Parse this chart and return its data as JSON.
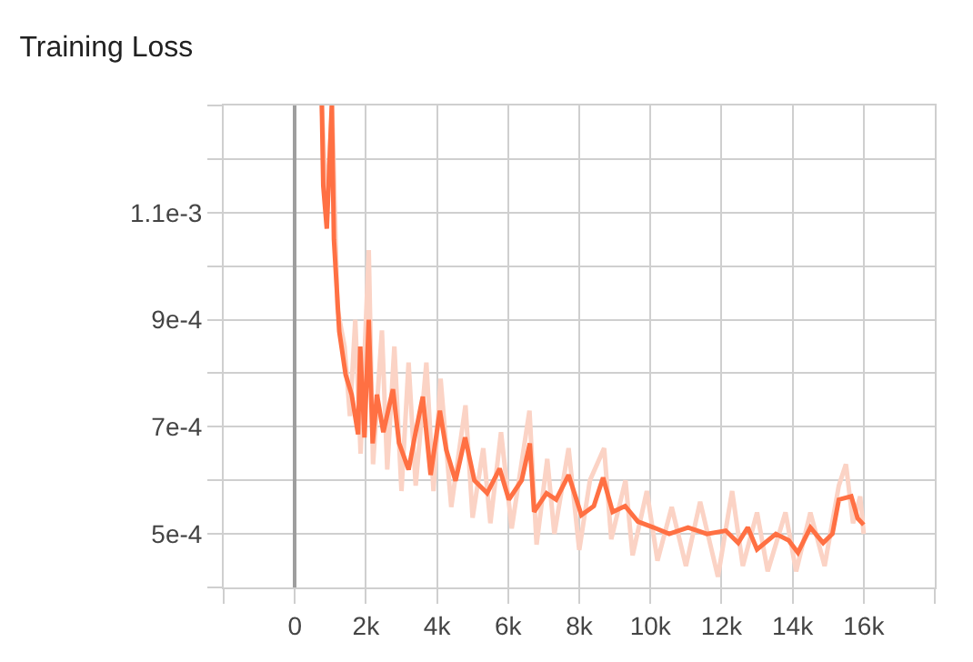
{
  "chart_data": {
    "type": "line",
    "title": "Training Loss",
    "grid": true,
    "xlim": [
      -2000,
      18000
    ],
    "xticks": [
      {
        "value": -2000,
        "label": null
      },
      0,
      {
        "value": 2000,
        "label": "2k"
      },
      {
        "value": 4000,
        "label": "4k"
      },
      {
        "value": 6000,
        "label": "6k"
      },
      {
        "value": 8000,
        "label": "8k"
      },
      {
        "value": 10000,
        "label": "10k"
      },
      {
        "value": 12000,
        "label": "12k"
      },
      {
        "value": 14000,
        "label": "14k"
      },
      {
        "value": 16000,
        "label": "16k"
      },
      {
        "value": 18000,
        "label": null
      }
    ],
    "ylim": [
      0.0004,
      0.0013
    ],
    "yticks": [
      {
        "value": 0.0004,
        "label": null
      },
      {
        "value": 0.0005,
        "label": "5e-4"
      },
      {
        "value": 0.0006,
        "label": null
      },
      {
        "value": 0.0007,
        "label": "7e-4"
      },
      {
        "value": 0.0008,
        "label": null
      },
      {
        "value": 0.0009,
        "label": "9e-4"
      },
      {
        "value": 0.001,
        "label": null
      },
      {
        "value": 0.0011,
        "label": "1.1e-3"
      },
      {
        "value": 0.0012,
        "label": null
      },
      {
        "value": 0.0013,
        "label": null
      }
    ],
    "series": [
      {
        "color": "#fbd3c5",
        "x": [
          760,
          900,
          1050,
          1200,
          1400,
          1550,
          1700,
          1850,
          2080,
          2200,
          2450,
          2600,
          2800,
          3000,
          3200,
          3400,
          3700,
          3900,
          4100,
          4400,
          4800,
          5000,
          5300,
          5500,
          5800,
          6100,
          6600,
          6800,
          7100,
          7300,
          7700,
          8000,
          8300,
          8700,
          8900,
          9300,
          9500,
          9900,
          10200,
          10600,
          11000,
          11400,
          11900,
          12300,
          12600,
          13000,
          13300,
          13800,
          14100,
          14500,
          14900,
          15300,
          15500,
          15700,
          15900,
          16000
        ],
        "values": [
          0.0013,
          0.0011,
          0.0013,
          0.00092,
          0.00085,
          0.00072,
          0.0009,
          0.00065,
          0.00103,
          0.00063,
          0.00088,
          0.00062,
          0.00085,
          0.00058,
          0.00082,
          0.00059,
          0.00082,
          0.00058,
          0.00079,
          0.00055,
          0.00074,
          0.00053,
          0.00066,
          0.00052,
          0.00069,
          0.00051,
          0.00073,
          0.00048,
          0.00064,
          0.0005,
          0.00066,
          0.00047,
          0.0006,
          0.00066,
          0.00049,
          0.0006,
          0.00046,
          0.00058,
          0.00045,
          0.00055,
          0.00044,
          0.00056,
          0.00042,
          0.00058,
          0.00044,
          0.00054,
          0.00043,
          0.00054,
          0.00043,
          0.00054,
          0.00044,
          0.00059,
          0.00063,
          0.00052,
          0.00057,
          0.0005
        ]
      },
      {
        "color": "#ff7043",
        "x": [
          760,
          800,
          900,
          1040,
          1100,
          1250,
          1430,
          1600,
          1780,
          1840,
          1960,
          2080,
          2190,
          2310,
          2490,
          2760,
          2930,
          3200,
          3370,
          3600,
          3820,
          4080,
          4260,
          4520,
          4790,
          5050,
          5410,
          5760,
          6020,
          6380,
          6610,
          6730,
          7080,
          7350,
          7700,
          8060,
          8410,
          8670,
          8940,
          9290,
          9650,
          10090,
          10530,
          11060,
          11590,
          12120,
          12470,
          12740,
          13000,
          13530,
          13890,
          14150,
          14500,
          14860,
          15120,
          15300,
          15650,
          15830,
          16000
        ],
        "values": [
          0.0013,
          0.00115,
          0.00107,
          0.0013,
          0.00105,
          0.000878,
          0.000797,
          0.00076,
          0.000686,
          0.00085,
          0.00068,
          0.0009,
          0.000669,
          0.00076,
          0.00069,
          0.00077,
          0.00067,
          0.00062,
          0.00068,
          0.000756,
          0.00061,
          0.00073,
          0.000657,
          0.000599,
          0.00068,
          0.0006,
          0.000576,
          0.000622,
          0.000564,
          0.0006,
          0.000669,
          0.000541,
          0.000576,
          0.000564,
          0.00061,
          0.000535,
          0.000552,
          0.000605,
          0.000541,
          0.000552,
          0.000523,
          0.000512,
          0.0005,
          0.000512,
          0.0005,
          0.000506,
          0.000483,
          0.000512,
          0.000471,
          0.0005,
          0.000488,
          0.000465,
          0.000512,
          0.000483,
          0.0005,
          0.000564,
          0.00057,
          0.000529,
          0.000517
        ]
      }
    ]
  }
}
